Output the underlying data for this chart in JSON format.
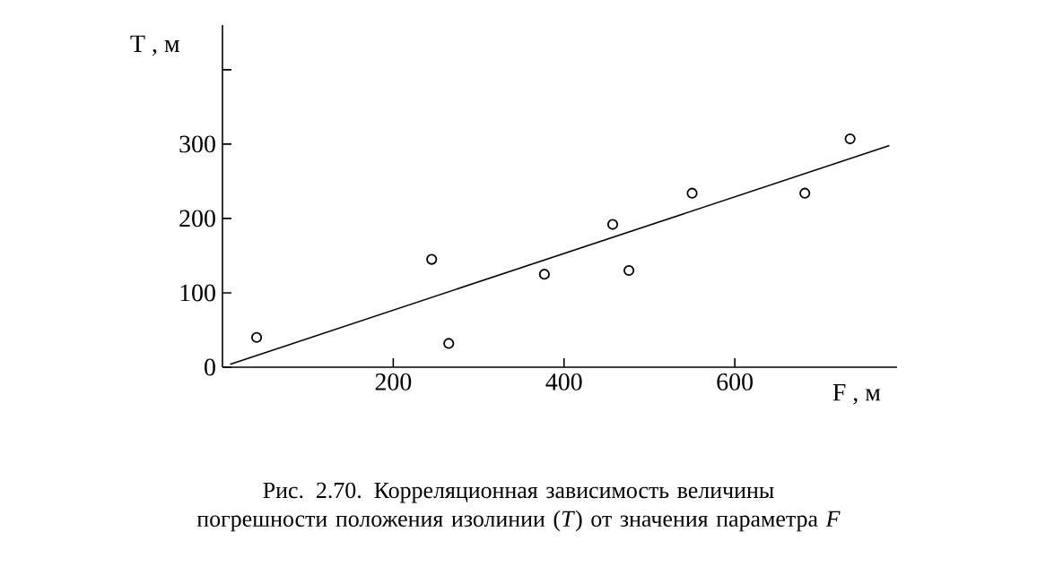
{
  "chart_data": {
    "type": "scatter",
    "xlabel": "F , м",
    "ylabel": "T , м",
    "xlim": [
      0,
      790
    ],
    "ylim": [
      0,
      460
    ],
    "xticks": [
      200,
      400,
      600
    ],
    "yticks": [
      0,
      100,
      200,
      300,
      {
        "value": 400,
        "label": null
      }
    ],
    "series": [
      {
        "color": "#000000",
        "marker": "circle",
        "x": [
          40,
          245,
          265,
          377,
          457,
          476,
          550,
          682,
          735
        ],
        "values": [
          40,
          145,
          32,
          125,
          192,
          130,
          234,
          234,
          307
        ]
      },
      {
        "type": "line",
        "color": "#000000",
        "x": [
          9,
          781
        ],
        "values": [
          4,
          298
        ]
      }
    ],
    "annotations": [
      "Рис. 2.70. Корреляционная зависимость величины погрешности положения изолинии (*T*) от значения параметра *F*"
    ]
  }
}
